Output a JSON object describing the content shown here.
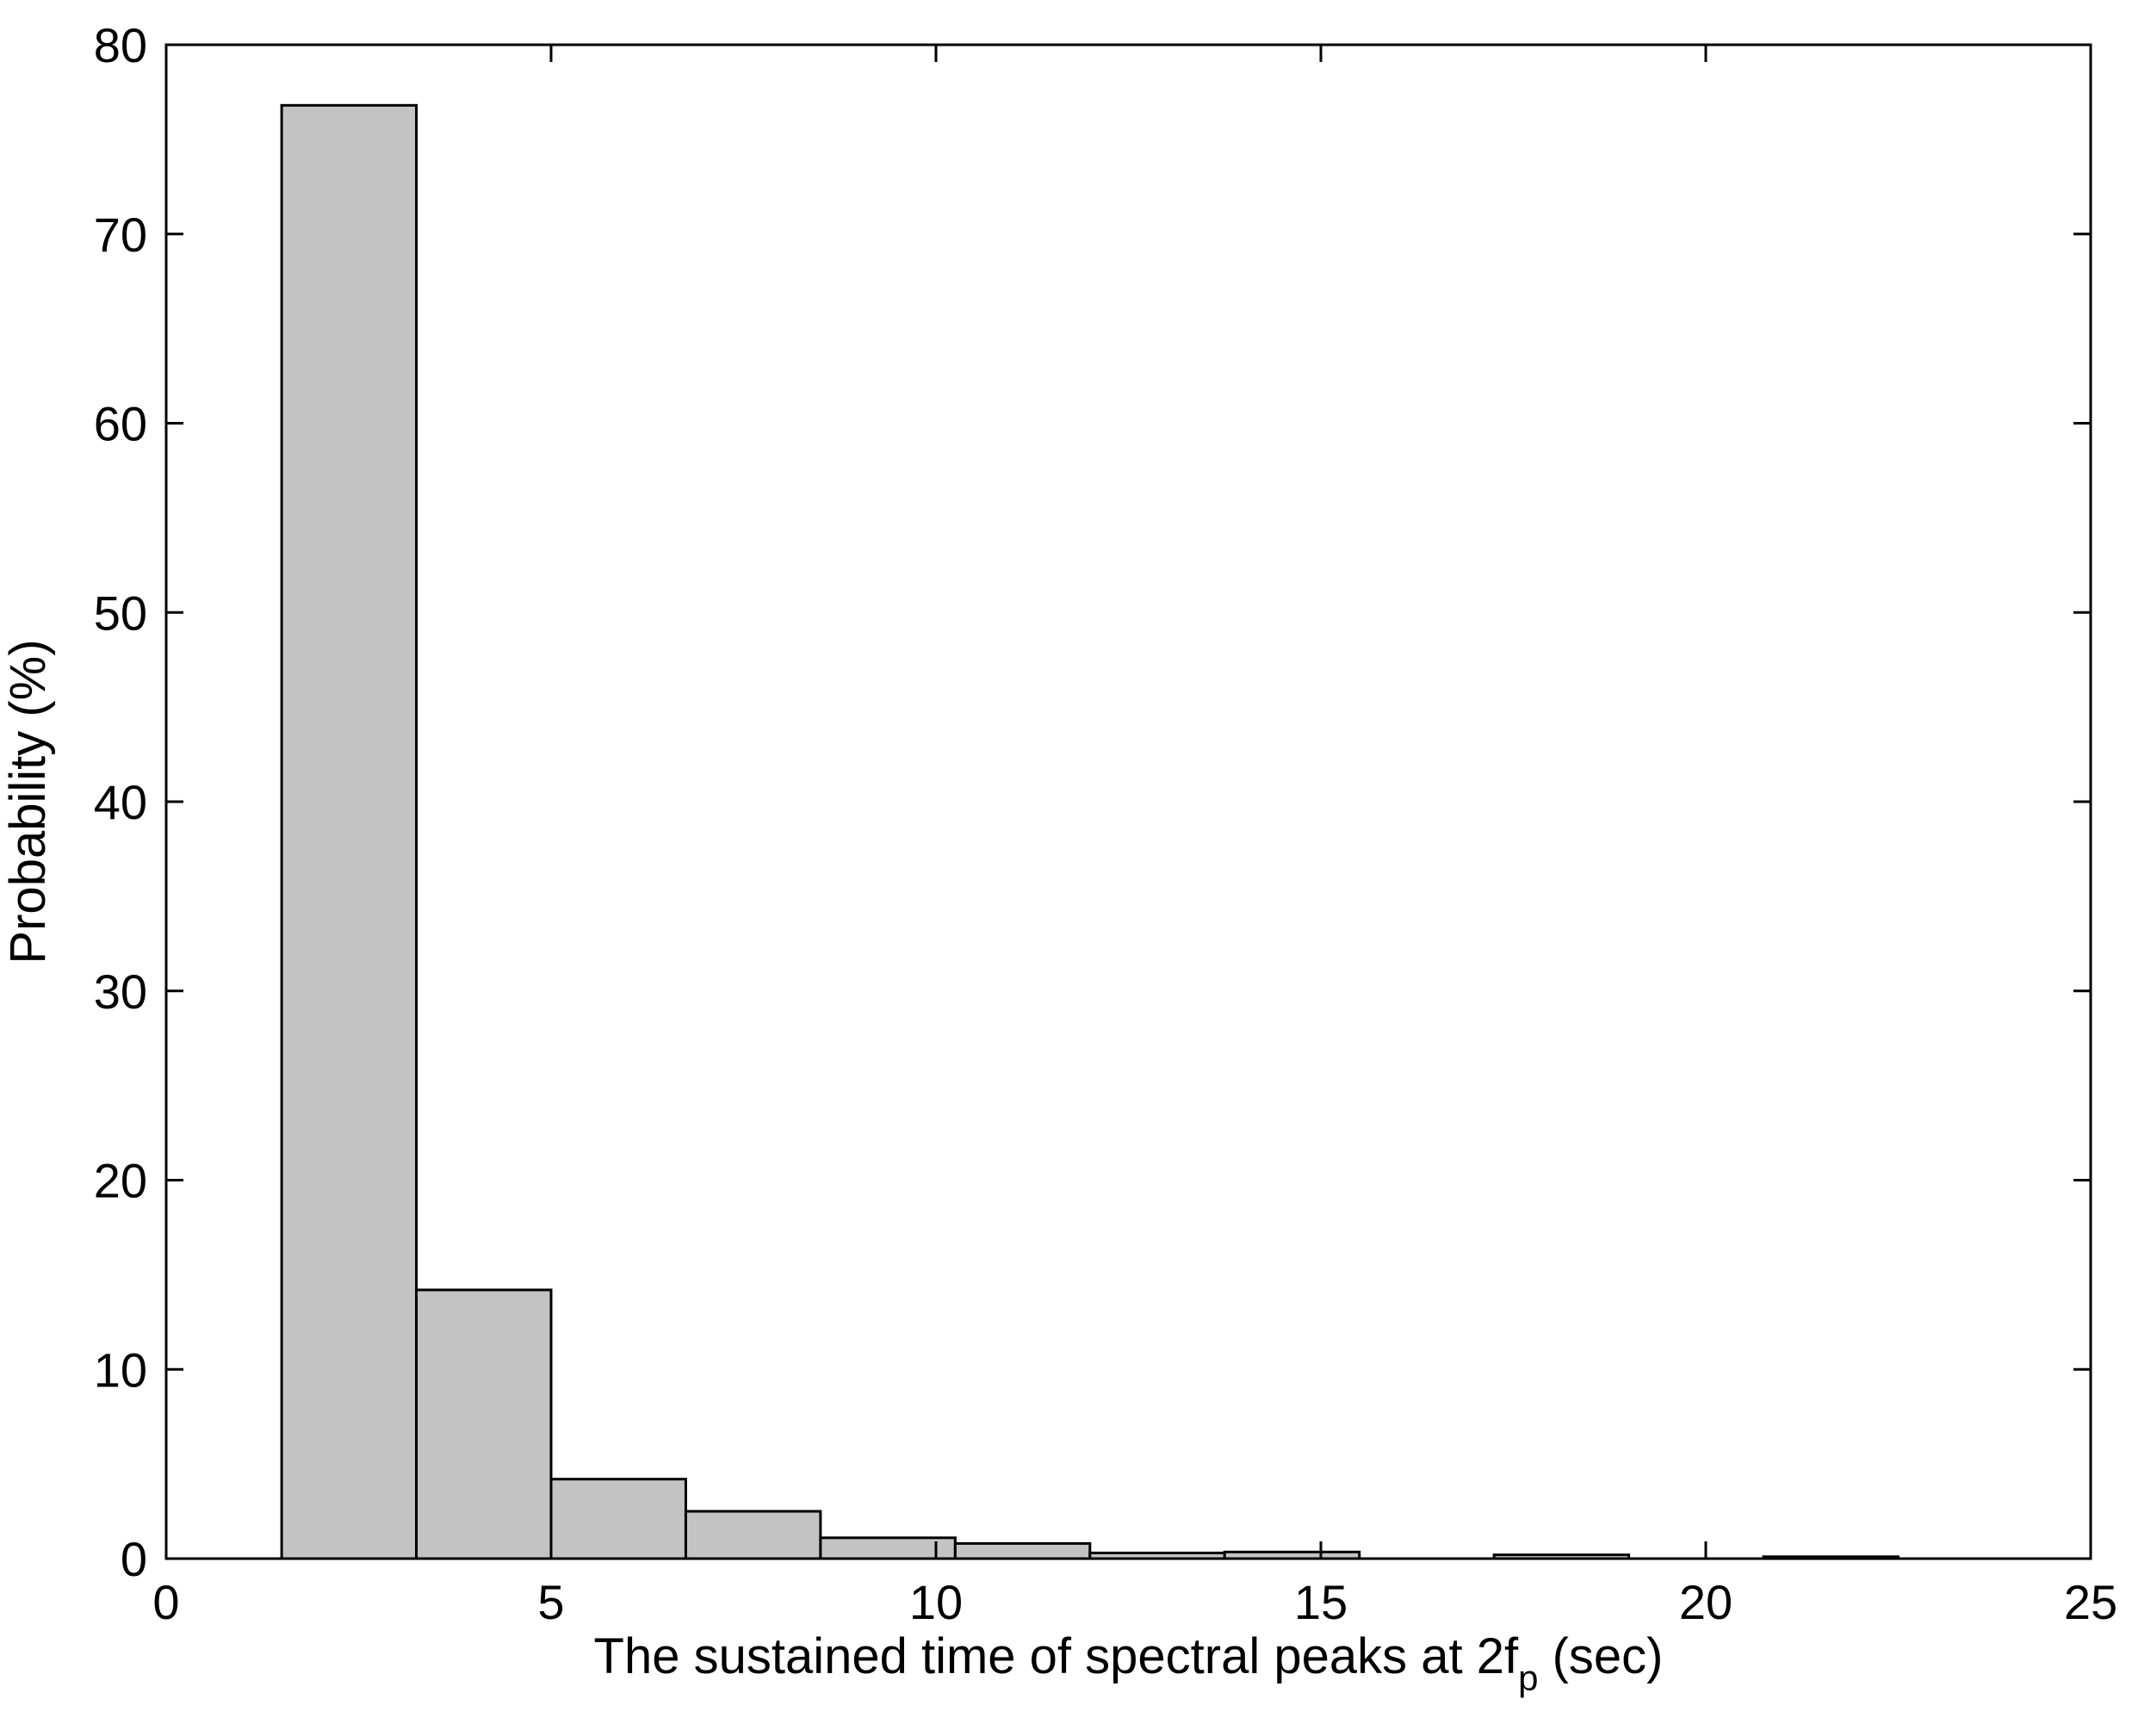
{
  "chart_data": {
    "type": "bar",
    "xlabel_main": "The sustained time of spectral peaks at 2f",
    "xlabel_sub": "p",
    "xlabel_tail": " (sec)",
    "ylabel": "Probability (%)",
    "xlim": [
      0,
      25
    ],
    "ylim": [
      0,
      80
    ],
    "xticks": [
      0,
      5,
      10,
      15,
      20,
      25
    ],
    "yticks": [
      0,
      10,
      20,
      30,
      40,
      50,
      60,
      70,
      80
    ],
    "grid": false,
    "bins": [
      {
        "x0": 1.5,
        "x1": 3.25,
        "value": 76.8
      },
      {
        "x0": 3.25,
        "x1": 5.0,
        "value": 14.2
      },
      {
        "x0": 5.0,
        "x1": 6.75,
        "value": 4.2
      },
      {
        "x0": 6.75,
        "x1": 8.5,
        "value": 2.5
      },
      {
        "x0": 8.5,
        "x1": 10.25,
        "value": 1.1
      },
      {
        "x0": 10.25,
        "x1": 12.0,
        "value": 0.8
      },
      {
        "x0": 12.0,
        "x1": 13.75,
        "value": 0.3
      },
      {
        "x0": 13.75,
        "x1": 15.5,
        "value": 0.35
      },
      {
        "x0": 15.5,
        "x1": 17.25,
        "value": 0.0
      },
      {
        "x0": 17.25,
        "x1": 19.0,
        "value": 0.2
      },
      {
        "x0": 19.0,
        "x1": 20.75,
        "value": 0.0
      },
      {
        "x0": 20.75,
        "x1": 22.5,
        "value": 0.1
      }
    ]
  }
}
